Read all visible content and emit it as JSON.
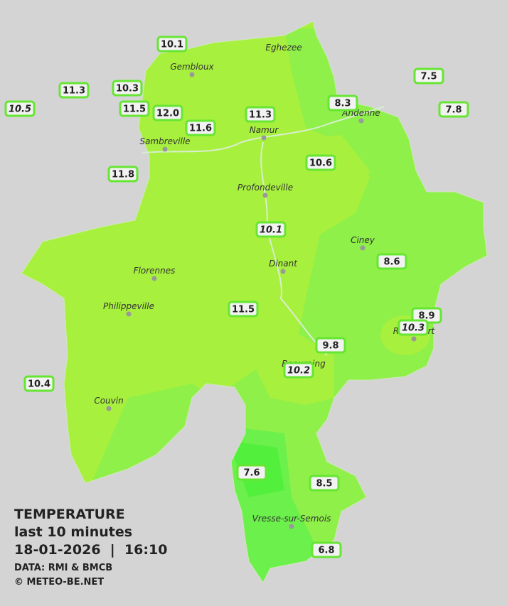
{
  "legend": {
    "title": "TEMPERATURE",
    "subtitle": "last 10 minutes",
    "datetime": "18-01-2026  |  16:10",
    "source": "DATA: RMI & BMCB",
    "copyright": "© METEO-BE.NET"
  },
  "cities": [
    {
      "name": "Eghezee"
    },
    {
      "name": "Gembloux"
    },
    {
      "name": "Andenne"
    },
    {
      "name": "Sambreville"
    },
    {
      "name": "Namur"
    },
    {
      "name": "Profondeville"
    },
    {
      "name": "Ciney"
    },
    {
      "name": "Dinant"
    },
    {
      "name": "Florennes"
    },
    {
      "name": "Philippeville"
    },
    {
      "name": "Rochefort"
    },
    {
      "name": "Beauraing"
    },
    {
      "name": "Couvin"
    },
    {
      "name": "Vresse-sur-Semois"
    }
  ],
  "stations": [
    {
      "label": "10.1"
    },
    {
      "label": "10.3"
    },
    {
      "label": "11.3"
    },
    {
      "label": "10.5",
      "italic": true
    },
    {
      "label": "11.5"
    },
    {
      "label": "12.0"
    },
    {
      "label": "11.6"
    },
    {
      "label": "11.3"
    },
    {
      "label": "8.3"
    },
    {
      "label": "7.5"
    },
    {
      "label": "7.8"
    },
    {
      "label": "11.8"
    },
    {
      "label": "10.6"
    },
    {
      "label": "10.1",
      "italic": true
    },
    {
      "label": "8.6"
    },
    {
      "label": "11.5"
    },
    {
      "label": "8.9"
    },
    {
      "label": "10.3",
      "italic": true
    },
    {
      "label": "9.8"
    },
    {
      "label": "10.2",
      "italic": true
    },
    {
      "label": "10.4"
    },
    {
      "label": "7.6"
    },
    {
      "label": "8.5"
    },
    {
      "label": "6.8"
    }
  ]
}
